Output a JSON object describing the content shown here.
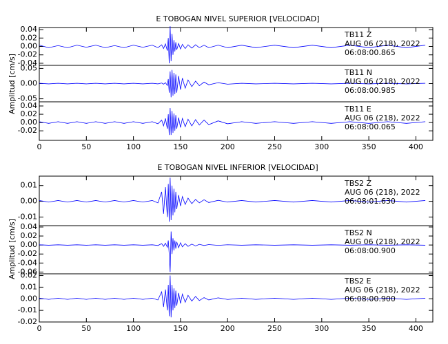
{
  "chart_data": [
    {
      "type": "line",
      "title": "E TOBOGAN NIVEL SUPERIOR [VELOCIDAD]",
      "ylabel": "Amplitud [cm/s]",
      "color": "#0000ff",
      "xlim": [
        0,
        418
      ],
      "xticks": [
        0,
        50,
        100,
        150,
        200,
        250,
        300,
        350,
        400
      ],
      "x": [
        0,
        10,
        20,
        30,
        40,
        50,
        60,
        70,
        80,
        90,
        100,
        110,
        120,
        126,
        130,
        132,
        134,
        136,
        137,
        138,
        139,
        140,
        141,
        142,
        143,
        144,
        145,
        146,
        148,
        150,
        152,
        155,
        158,
        162,
        166,
        170,
        175,
        180,
        190,
        200,
        215,
        230,
        250,
        270,
        290,
        310,
        330,
        350,
        370,
        390,
        410
      ],
      "panels": [
        {
          "station": "TB11   Z",
          "date": "AUG 06 (218), 2022",
          "time": "06:08:00.865",
          "ylim": [
            -0.045,
            0.045
          ],
          "yticks": [
            0.04,
            0.02,
            {
              "value": 0,
              "label": "0.00"
            },
            -0.02,
            -0.04
          ],
          "values": [
            0.003,
            -0.003,
            0.002,
            -0.003,
            0.003,
            -0.002,
            0.003,
            -0.003,
            0.002,
            -0.003,
            0.003,
            -0.002,
            0.003,
            -0.003,
            0.004,
            -0.005,
            0.006,
            -0.01,
            0.02,
            -0.04,
            0.048,
            -0.035,
            0.03,
            -0.02,
            0.015,
            -0.012,
            0.01,
            -0.008,
            0.007,
            -0.006,
            0.005,
            -0.005,
            0.004,
            -0.004,
            0.004,
            -0.003,
            0.003,
            -0.003,
            0.003,
            -0.003,
            0.003,
            -0.003,
            0.003,
            -0.003,
            0.003,
            -0.003,
            0.003,
            -0.003,
            0.003,
            -0.003,
            0.003
          ]
        },
        {
          "station": "TB11   N",
          "date": "AUG 06 (218), 2022",
          "time": "06:08:00.985",
          "ylim": [
            -0.06,
            0.06
          ],
          "yticks": [
            0.05,
            {
              "value": 0,
              "label": "0.00"
            },
            -0.05
          ],
          "values": [
            0.001,
            -0.001,
            0.001,
            -0.001,
            0.001,
            -0.001,
            0.001,
            -0.001,
            0.001,
            -0.001,
            0.001,
            -0.001,
            0.001,
            -0.001,
            0.002,
            -0.002,
            0.003,
            -0.006,
            0.015,
            -0.03,
            0.04,
            -0.045,
            0.045,
            -0.04,
            0.035,
            -0.035,
            0.03,
            -0.03,
            0.025,
            -0.02,
            0.018,
            -0.015,
            0.012,
            -0.01,
            0.008,
            -0.007,
            0.005,
            -0.004,
            0.003,
            -0.002,
            0.001,
            -0.001,
            0.001,
            -0.001,
            0.001,
            -0.001,
            0.001,
            -0.001,
            0.001,
            -0.001,
            0.001
          ]
        },
        {
          "station": "TB11   E",
          "date": "AUG 06 (218), 2022",
          "time": "06:08:00.065",
          "ylim": [
            -0.043,
            0.05
          ],
          "yticks": [
            0.04,
            0.02,
            {
              "value": 0,
              "label": "0.00"
            },
            -0.02
          ],
          "values": [
            0.002,
            -0.002,
            0.002,
            -0.002,
            0.002,
            -0.002,
            0.002,
            -0.002,
            0.002,
            -0.002,
            0.002,
            -0.002,
            0.002,
            -0.003,
            0.006,
            -0.008,
            0.01,
            -0.015,
            0.02,
            -0.03,
            0.035,
            -0.03,
            0.028,
            -0.025,
            0.022,
            -0.02,
            0.018,
            -0.015,
            0.012,
            -0.012,
            0.01,
            -0.01,
            0.008,
            -0.008,
            0.007,
            -0.006,
            0.006,
            -0.005,
            0.004,
            -0.003,
            0.002,
            -0.002,
            0.002,
            -0.002,
            0.002,
            -0.002,
            0.002,
            -0.002,
            0.002,
            -0.002,
            0.002
          ]
        }
      ]
    },
    {
      "type": "line",
      "title": "E TOBOGAN NIVEL INFERIOR [VELOCIDAD]",
      "ylabel": "Amplitud [cm/s]",
      "color": "#0000ff",
      "xlim": [
        0,
        418
      ],
      "xticks": [
        0,
        50,
        100,
        150,
        200,
        250,
        300,
        350,
        400
      ],
      "x": [
        0,
        10,
        20,
        30,
        40,
        50,
        60,
        70,
        80,
        90,
        100,
        110,
        120,
        126,
        130,
        132,
        134,
        136,
        137,
        138,
        139,
        140,
        141,
        142,
        143,
        144,
        145,
        146,
        148,
        150,
        152,
        155,
        158,
        162,
        166,
        170,
        175,
        180,
        190,
        200,
        215,
        230,
        250,
        270,
        290,
        310,
        330,
        350,
        370,
        390,
        410
      ],
      "panels": [
        {
          "station": "TBS2   Z",
          "date": "AUG 06 (218), 2022",
          "time": "06:08:01.630",
          "ylim": [
            -0.0155,
            0.016
          ],
          "yticks": [
            0.01,
            {
              "value": 0,
              "label": "0.00"
            },
            -0.01
          ],
          "values": [
            0.0005,
            -0.0005,
            0.0005,
            -0.0005,
            0.0005,
            -0.0005,
            0.0005,
            -0.0005,
            0.0005,
            -0.0005,
            0.0005,
            -0.0005,
            0.0005,
            -0.001,
            0.006,
            -0.008,
            0.009,
            -0.01,
            0.011,
            -0.013,
            0.015,
            -0.012,
            0.01,
            -0.009,
            0.008,
            -0.007,
            0.006,
            -0.005,
            0.004,
            -0.003,
            0.003,
            -0.002,
            0.002,
            -0.0015,
            0.0012,
            -0.001,
            0.001,
            -0.0008,
            0.0006,
            -0.0005,
            0.0005,
            -0.0005,
            0.0005,
            -0.0005,
            0.0005,
            -0.0005,
            0.0005,
            -0.0005,
            0.0005,
            -0.0005,
            0.0005
          ]
        },
        {
          "station": "TBS2   N",
          "date": "AUG 06 (218), 2022",
          "time": "06:08:00.900",
          "ylim": [
            -0.064,
            0.043
          ],
          "yticks": [
            0.04,
            0.02,
            {
              "value": 0,
              "label": "0.00"
            },
            -0.02,
            -0.04,
            -0.06
          ],
          "values": [
            0.0005,
            -0.0005,
            0.0005,
            -0.0005,
            0.0005,
            -0.0005,
            0.0005,
            -0.0005,
            0.0005,
            -0.0005,
            0.0005,
            -0.0005,
            0.0005,
            -0.001,
            0.003,
            -0.003,
            0.004,
            -0.005,
            0.01,
            -0.02,
            -0.06,
            0.03,
            -0.02,
            0.015,
            -0.012,
            0.01,
            -0.008,
            0.007,
            -0.006,
            0.005,
            -0.004,
            0.003,
            -0.003,
            0.002,
            -0.002,
            0.0015,
            -0.001,
            0.001,
            -0.0008,
            0.0006,
            -0.0005,
            0.0005,
            -0.0005,
            0.0005,
            -0.0005,
            0.0005,
            -0.0005,
            0.0005,
            -0.0005,
            0.0005,
            -0.0005
          ]
        },
        {
          "station": "TBS2   E",
          "date": "AUG 06 (218), 2022",
          "time": "06:08:00.900",
          "ylim": [
            -0.02,
            0.0215
          ],
          "yticks": [
            0.02,
            0.01,
            {
              "value": 0,
              "label": "0.00"
            },
            -0.01,
            -0.02
          ],
          "values": [
            0.0005,
            -0.0005,
            0.0005,
            -0.0005,
            0.0005,
            -0.0005,
            0.0005,
            -0.0005,
            0.0005,
            -0.0005,
            0.0005,
            -0.0005,
            0.0005,
            -0.001,
            0.006,
            -0.007,
            0.008,
            -0.01,
            0.012,
            -0.015,
            0.02,
            -0.016,
            0.012,
            -0.01,
            0.009,
            -0.008,
            0.007,
            -0.006,
            0.005,
            -0.004,
            0.004,
            -0.003,
            0.003,
            -0.002,
            0.002,
            -0.0015,
            0.001,
            -0.001,
            0.0008,
            -0.0006,
            0.0005,
            -0.0005,
            0.0005,
            -0.0005,
            0.0005,
            -0.0005,
            0.0005,
            -0.0005,
            0.0005,
            -0.0005,
            0.0005
          ]
        }
      ]
    }
  ]
}
